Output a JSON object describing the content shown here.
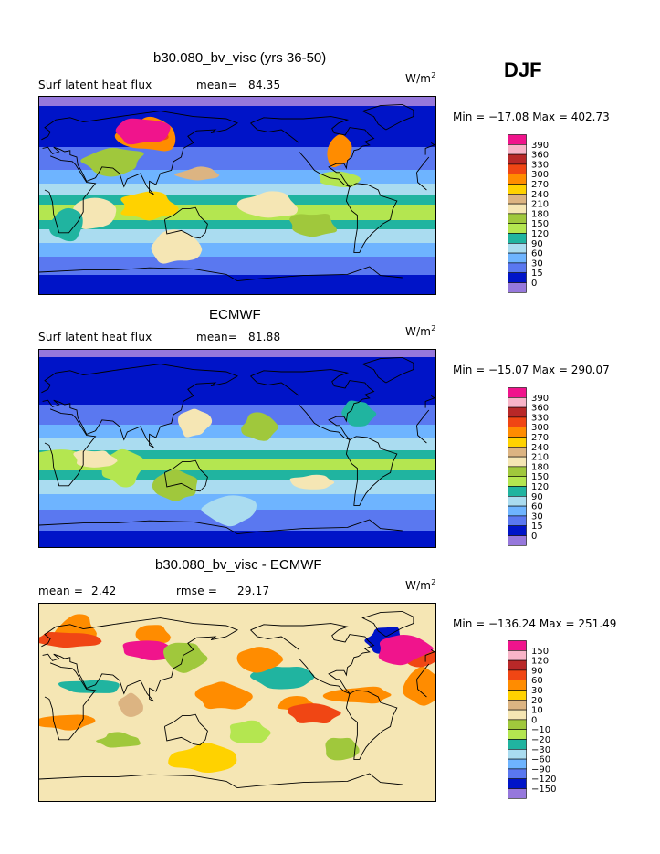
{
  "season": "DJF",
  "units_base": "W/m",
  "units_exp": "2",
  "colors": {
    "magenta": "#f0148c",
    "pink": "#f8b4c8",
    "darkred": "#b82828",
    "red": "#f04614",
    "orange": "#ff8c00",
    "gold": "#ffd200",
    "tan": "#dcb482",
    "cream": "#f5e6b4",
    "olive": "#a0c83c",
    "lime": "#b4e650",
    "teal": "#20b4a0",
    "lightblue": "#aadcf0",
    "skyblue": "#6eb4ff",
    "blue": "#5a78f0",
    "navy": "#0014c8",
    "lavender": "#9678dc"
  },
  "panels": [
    {
      "title": "b30.080_bv_visc (yrs 36-50)",
      "left_label": "Surf latent heat flux",
      "stat1_label": "mean=",
      "stat1_value": "84.35",
      "stat2_label": "",
      "stat2_value": "",
      "min_label": "Min =",
      "min_value": "−17.08",
      "max_label": "Max =",
      "max_value": "402.73",
      "colorbar_labels": [
        "390",
        "360",
        "330",
        "300",
        "270",
        "240",
        "210",
        "180",
        "150",
        "120",
        "90",
        "60",
        "30",
        "15",
        "0"
      ],
      "background_color": "blue"
    },
    {
      "title": "ECMWF",
      "left_label": "Surf latent heat flux",
      "stat1_label": "mean=",
      "stat1_value": "81.88",
      "stat2_label": "",
      "stat2_value": "",
      "min_label": "Min =",
      "min_value": "−15.07",
      "max_label": "Max =",
      "max_value": "290.07",
      "colorbar_labels": [
        "390",
        "360",
        "330",
        "300",
        "270",
        "240",
        "210",
        "180",
        "150",
        "120",
        "90",
        "60",
        "30",
        "15",
        "0"
      ],
      "background_color": "blue"
    },
    {
      "title": "b30.080_bv_visc - ECMWF",
      "left_label": "",
      "stat1_label": "mean =",
      "stat1_value": "2.42",
      "stat2_label": "rmse =",
      "stat2_value": "29.17",
      "min_label": "Min =",
      "min_value": "−136.24",
      "max_label": "Max =",
      "max_value": "251.49",
      "colorbar_labels": [
        "150",
        "120",
        "90",
        "60",
        "30",
        "20",
        "10",
        "0",
        "−10",
        "−20",
        "−30",
        "−60",
        "−90",
        "−120",
        "−150"
      ],
      "background_color": "cream"
    }
  ],
  "colorbar_colors": [
    "magenta",
    "pink",
    "darkred",
    "red",
    "orange",
    "gold",
    "tan",
    "cream",
    "olive",
    "lime",
    "teal",
    "lightblue",
    "skyblue",
    "blue",
    "navy",
    "lavender"
  ]
}
